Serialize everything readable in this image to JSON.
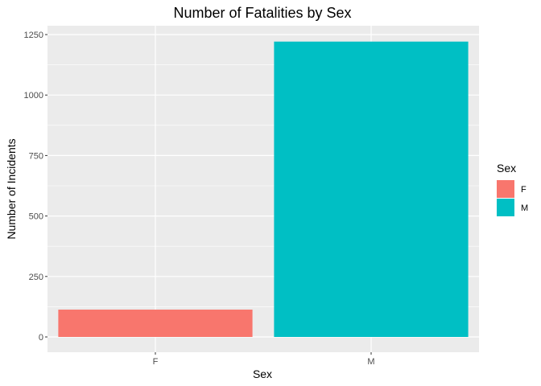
{
  "chart_data": {
    "type": "bar",
    "title": "Number of Fatalities by Sex",
    "xlabel": "Sex",
    "ylabel": "Number of Incidents",
    "categories": [
      "F",
      "M"
    ],
    "values": [
      113,
      1221
    ],
    "colors": [
      "#F8766D",
      "#00BFC4"
    ],
    "ylim": [
      0,
      1275
    ],
    "yticks": [
      0,
      250,
      500,
      750,
      1000,
      1250
    ],
    "ytick_labels": [
      "0",
      "250",
      "500",
      "750",
      "1000",
      "1250"
    ],
    "grid": true,
    "panel_background": "#EBEBEB",
    "legend": {
      "title": "Sex",
      "position": "right",
      "items": [
        {
          "label": "F",
          "color": "#F8766D"
        },
        {
          "label": "M",
          "color": "#00BFC4"
        }
      ]
    }
  }
}
